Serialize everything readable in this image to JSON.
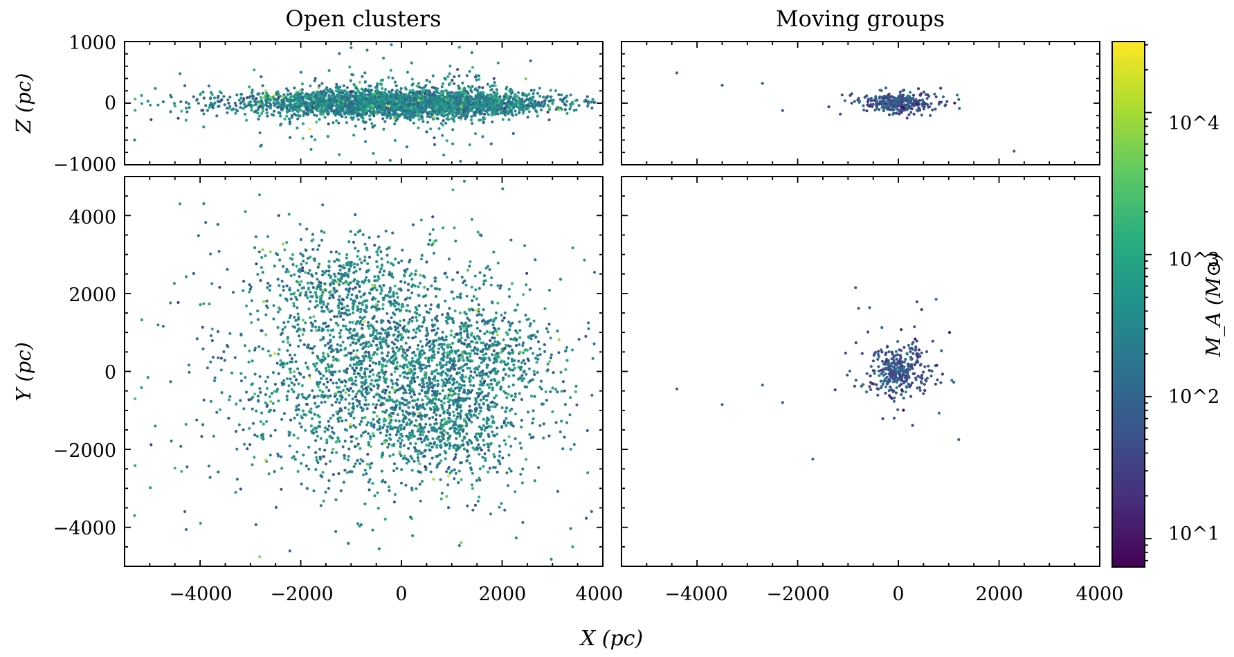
{
  "figure": {
    "shared_xlabel": "X (pc)",
    "colorbar_label": "M_A (M⊙)",
    "colorbar_ticks": [
      "10^1",
      "10^2",
      "10^3",
      "10^4"
    ],
    "colormap": [
      "#440154",
      "#472d7b",
      "#3b528b",
      "#2c728e",
      "#21918c",
      "#28ae80",
      "#5ec962",
      "#addc30",
      "#fde725"
    ]
  },
  "chart_data": [
    {
      "id": "oc-xz",
      "type": "scatter",
      "title": "Open clusters",
      "xlabel": "",
      "ylabel": "Z (pc)",
      "xlim": [
        -5500,
        4000
      ],
      "ylim": [
        -1000,
        1000
      ],
      "xticks": [
        -4000,
        -2000,
        0,
        2000,
        4000
      ],
      "yticks": [
        -1000,
        0,
        1000
      ],
      "ytick_labels": [
        "−1000",
        "0",
        "1000"
      ],
      "color_scale": "log10 M_A, range 10^0.8 to 10^4.5",
      "points_summary": "~3500 open clusters concentrated near Z=0, spread roughly -5000..3800 pc in X with thin-disk scatter (sigma ~100 pc, outliers to ±800 pc)",
      "sample_points": [
        [
          -5300,
          -600
        ],
        [
          -4400,
          480
        ],
        [
          -2800,
          -700
        ],
        [
          -1000,
          900
        ],
        [
          -200,
          950
        ],
        [
          1400,
          820
        ],
        [
          3700,
          -50
        ]
      ]
    },
    {
      "id": "mg-xz",
      "type": "scatter",
      "title": "Moving groups",
      "xlabel": "",
      "ylabel": "",
      "xlim": [
        -5500,
        4000
      ],
      "ylim": [
        -1000,
        1000
      ],
      "xticks": [
        -4000,
        -2000,
        0,
        2000,
        4000
      ],
      "yticks": [
        -1000,
        0,
        1000
      ],
      "points_summary": "~350 moving groups clustered at X=0±700 pc, Z=0±200 pc",
      "sample_points": [
        [
          -4400,
          490
        ],
        [
          -3500,
          290
        ],
        [
          -2700,
          320
        ],
        [
          -2300,
          -120
        ],
        [
          1200,
          60
        ],
        [
          2300,
          -780
        ]
      ]
    },
    {
      "id": "oc-xy",
      "type": "scatter",
      "title": "",
      "xlabel": "X (pc)",
      "ylabel": "Y (pc)",
      "xlim": [
        -5500,
        4000
      ],
      "ylim": [
        -5000,
        5000
      ],
      "xticks": [
        -4000,
        -2000,
        0,
        2000,
        4000
      ],
      "xtick_labels": [
        "−4000",
        "−2000",
        "0",
        "2000",
        "4000"
      ],
      "yticks": [
        -4000,
        -2000,
        0,
        2000,
        4000
      ],
      "ytick_labels": [
        "−4000",
        "−2000",
        "0",
        "2000",
        "4000"
      ],
      "points_summary": "~3500 open clusters in the Galactic plane, dense within ~2500 pc of the Sun, sparser out to ~5000 pc",
      "sample_points": [
        [
          -5300,
          -3700
        ],
        [
          -4400,
          4300
        ],
        [
          -3100,
          4100
        ],
        [
          1400,
          3900
        ],
        [
          3700,
          -2600
        ],
        [
          3400,
          -4500
        ]
      ]
    },
    {
      "id": "mg-xy",
      "type": "scatter",
      "title": "",
      "xlabel": "X (pc)",
      "ylabel": "",
      "xlim": [
        -5500,
        4000
      ],
      "ylim": [
        -5000,
        5000
      ],
      "xticks": [
        -4000,
        -2000,
        0,
        2000,
        4000
      ],
      "xtick_labels": [
        "−4000",
        "−2000",
        "0",
        "2000",
        "4000"
      ],
      "yticks": [
        -4000,
        -2000,
        0,
        2000,
        4000
      ],
      "points_summary": "~350 moving groups concentrated within ~1000 pc of the Sun",
      "sample_points": [
        [
          -4400,
          -450
        ],
        [
          -3500,
          -850
        ],
        [
          -2700,
          -350
        ],
        [
          -2300,
          -800
        ],
        [
          -850,
          2150
        ],
        [
          750,
          1850
        ],
        [
          1200,
          -1750
        ],
        [
          -1700,
          -2250
        ]
      ]
    }
  ]
}
